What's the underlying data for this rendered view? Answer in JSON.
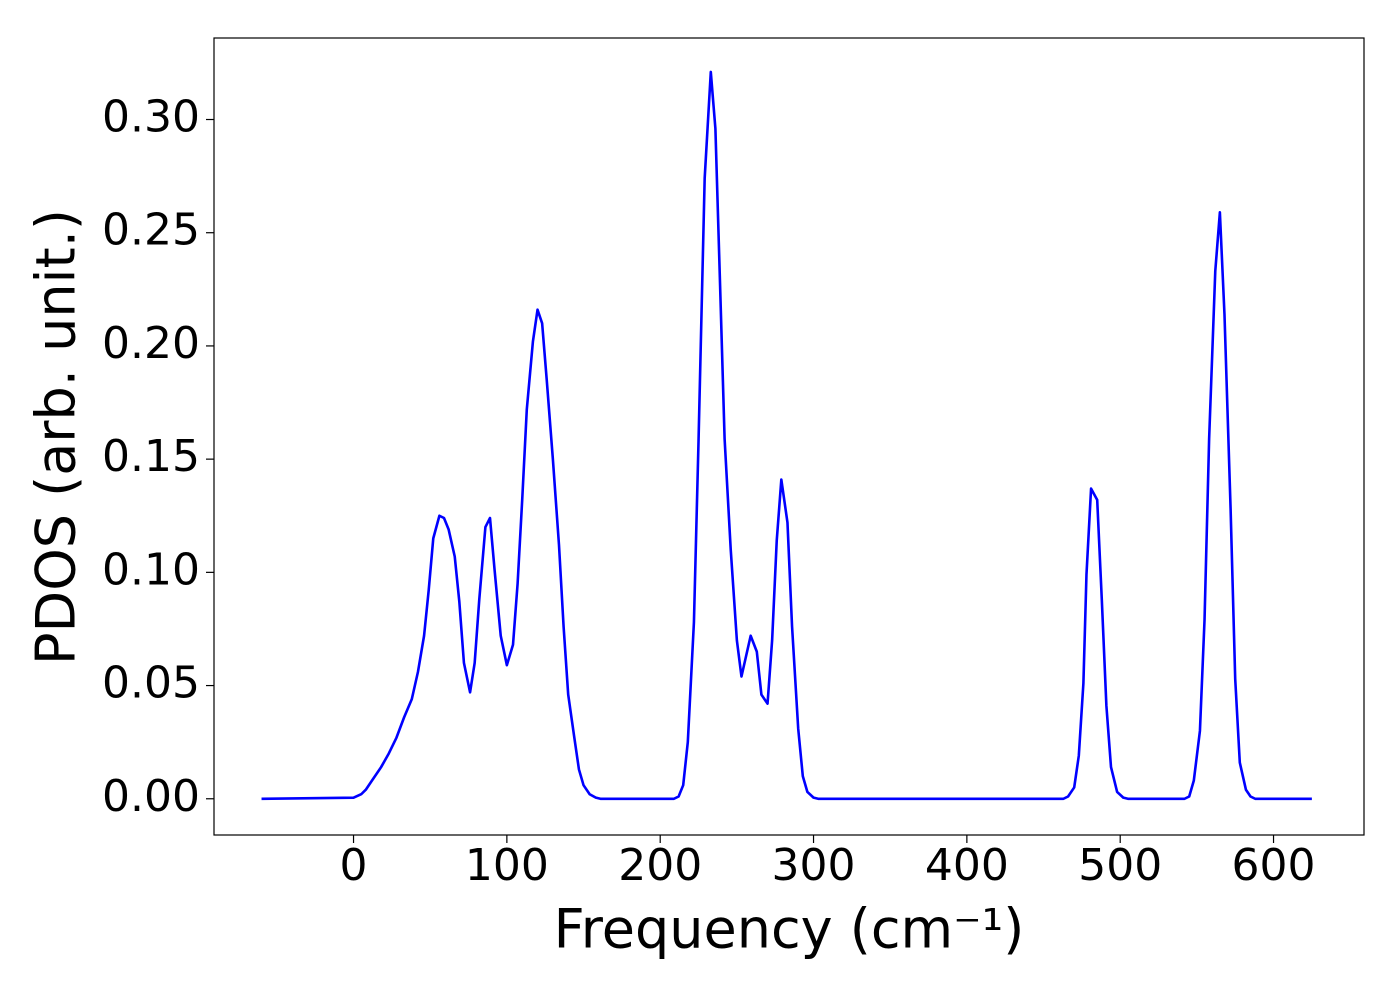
{
  "chart_data": {
    "type": "line",
    "x_label": "Frequency (cm⁻¹)",
    "y_label": "PDOS (arb. unit.)",
    "xlim": [
      -91,
      659
    ],
    "ylim": [
      -0.016,
      0.336
    ],
    "xticks": [
      0,
      100,
      200,
      300,
      400,
      500,
      600
    ],
    "yticks": [
      {
        "value": 0,
        "label": "0.00"
      },
      0.05,
      {
        "value": 0.1,
        "label": "0.10"
      },
      0.15,
      {
        "value": 0.2,
        "label": "0.20"
      },
      0.25,
      {
        "value": 0.3,
        "label": "0.30"
      }
    ],
    "x": [
      -60,
      0,
      5,
      8,
      12,
      18,
      23,
      28,
      33,
      38,
      42,
      46,
      49,
      52,
      56,
      59,
      62,
      66,
      69,
      72,
      76,
      79,
      82,
      86,
      89,
      92,
      96,
      100,
      104,
      107,
      110,
      113,
      117,
      120,
      123,
      126,
      130,
      134,
      137,
      140,
      144,
      147,
      150,
      154,
      158,
      161,
      209,
      212,
      215,
      218,
      222,
      225,
      229,
      233,
      236,
      239,
      242,
      246,
      250,
      253,
      256,
      259,
      263,
      266,
      270,
      273,
      276,
      279,
      283,
      286,
      290,
      293,
      296,
      300,
      303,
      463,
      466,
      470,
      473,
      476,
      478,
      481,
      485,
      488,
      491,
      494,
      498,
      502,
      505,
      542,
      545,
      548,
      552,
      555,
      558,
      562,
      565,
      568,
      572,
      575,
      578,
      582,
      585,
      588,
      625
    ],
    "series": [
      {
        "color": "#0000ff",
        "values": [
          0,
          0.0005,
          0.002,
          0.004,
          0.008,
          0.014,
          0.02,
          0.027,
          0.036,
          0.044,
          0.056,
          0.072,
          0.092,
          0.115,
          0.125,
          0.124,
          0.119,
          0.107,
          0.087,
          0.06,
          0.047,
          0.06,
          0.088,
          0.12,
          0.124,
          0.101,
          0.072,
          0.059,
          0.068,
          0.095,
          0.132,
          0.172,
          0.202,
          0.216,
          0.21,
          0.185,
          0.15,
          0.112,
          0.076,
          0.046,
          0.027,
          0.013,
          0.006,
          0.002,
          0.0005,
          0,
          0,
          0.001,
          0.006,
          0.025,
          0.078,
          0.158,
          0.274,
          0.321,
          0.296,
          0.228,
          0.159,
          0.11,
          0.07,
          0.054,
          0.063,
          0.072,
          0.065,
          0.046,
          0.042,
          0.07,
          0.114,
          0.141,
          0.122,
          0.076,
          0.031,
          0.01,
          0.003,
          0.0005,
          0,
          0,
          0.001,
          0.005,
          0.019,
          0.051,
          0.099,
          0.137,
          0.132,
          0.088,
          0.041,
          0.014,
          0.003,
          0.0005,
          0,
          0,
          0.001,
          0.008,
          0.03,
          0.079,
          0.159,
          0.233,
          0.259,
          0.214,
          0.128,
          0.053,
          0.016,
          0.004,
          0.001,
          0,
          0
        ]
      }
    ]
  }
}
